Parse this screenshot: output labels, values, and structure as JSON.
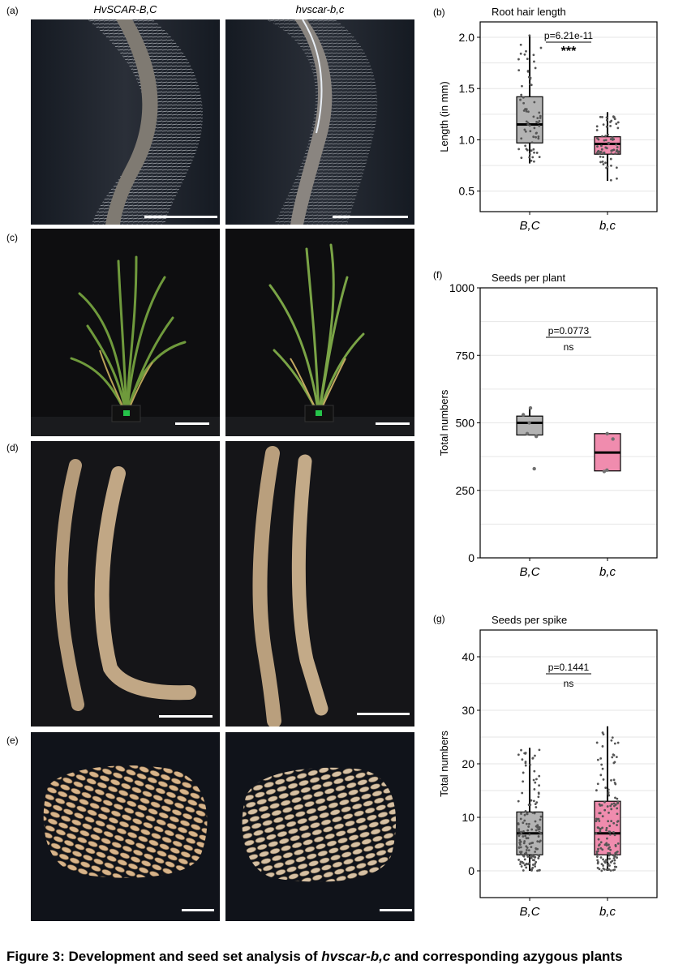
{
  "figure": {
    "caption": {
      "prefix": "Figure 3:  Development and seed set analysis of ",
      "genotype": "hvscar-b,c",
      "suffix": " and corresponding azygous plants"
    },
    "column_titles": {
      "left": "HvSCAR-B,C",
      "right": "hvscar-b,c"
    },
    "panel_labels": {
      "a": "(a)",
      "b": "(b)",
      "c": "(c)",
      "d": "(d)",
      "e": "(e)",
      "f": "(f)",
      "g": "(g)"
    }
  },
  "chart_data": [
    {
      "panel": "(b)",
      "type": "boxplot",
      "title": "Root hair length",
      "ylabel": "Length (in mm)",
      "xlabel": "",
      "categories": [
        "B,C",
        "b,c"
      ],
      "ylim": [
        0.3,
        2.15
      ],
      "yticks": [
        0.5,
        1.0,
        1.5,
        2.0
      ],
      "ytick_labels": [
        "0.5",
        "1.0",
        "1.5",
        "2.0"
      ],
      "colors": [
        "#b3b3b3",
        "#f08cae"
      ],
      "boxes": [
        {
          "name": "B,C",
          "whisker_low": 0.77,
          "q1": 0.97,
          "median": 1.15,
          "q3": 1.42,
          "whisker_high": 2.02
        },
        {
          "name": "b,c",
          "whisker_low": 0.6,
          "q1": 0.86,
          "median": 0.96,
          "q3": 1.03,
          "whisker_high": 1.27
        }
      ],
      "annotation": {
        "p_value": "p=6.21e-11",
        "significance": "***"
      },
      "grid": true
    },
    {
      "panel": "(f)",
      "type": "boxplot",
      "title": "Seeds per plant",
      "ylabel": "Total numbers",
      "xlabel": "",
      "categories": [
        "B,C",
        "b,c"
      ],
      "ylim": [
        0,
        1000
      ],
      "yticks": [
        0,
        250,
        500,
        750,
        1000
      ],
      "ytick_labels": [
        "0",
        "250",
        "500",
        "750",
        "1000"
      ],
      "colors": [
        "#b3b3b3",
        "#f08cae"
      ],
      "boxes": [
        {
          "name": "B,C",
          "whisker_low": 455,
          "q1": 455,
          "median": 500,
          "q3": 525,
          "whisker_high": 555
        },
        {
          "name": "b,c",
          "whisker_low": 320,
          "q1": 322,
          "median": 390,
          "q3": 460,
          "whisker_high": 462
        }
      ],
      "points": [
        {
          "group": "B,C",
          "values": [
            330,
            450,
            460,
            500,
            530,
            555
          ]
        },
        {
          "group": "b,c",
          "values": [
            320,
            325,
            440,
            460
          ]
        }
      ],
      "annotation": {
        "p_value": "p=0.0773",
        "significance": "ns"
      },
      "grid": true
    },
    {
      "panel": "(g)",
      "type": "boxplot",
      "title": "Seeds per spike",
      "ylabel": "Total numbers",
      "xlabel": "",
      "categories": [
        "B,C",
        "b,c"
      ],
      "ylim": [
        -5,
        45
      ],
      "yticks": [
        0,
        10,
        20,
        30,
        40
      ],
      "ytick_labels": [
        "0",
        "10",
        "20",
        "30",
        "40"
      ],
      "colors": [
        "#b3b3b3",
        "#f08cae"
      ],
      "boxes": [
        {
          "name": "B,C",
          "whisker_low": 0,
          "q1": 3,
          "median": 7,
          "q3": 11,
          "whisker_high": 23
        },
        {
          "name": "b,c",
          "whisker_low": 0,
          "q1": 3,
          "median": 7,
          "q3": 13,
          "whisker_high": 27
        }
      ],
      "annotation": {
        "p_value": "p=0.1441",
        "significance": "ns"
      },
      "grid": true
    }
  ]
}
